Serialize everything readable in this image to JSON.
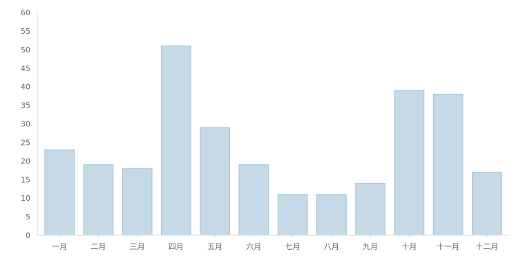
{
  "chart_data": {
    "type": "bar",
    "title": "",
    "xlabel": "",
    "ylabel": "",
    "categories": [
      "一月",
      "二月",
      "三月",
      "四月",
      "五月",
      "六月",
      "七月",
      "八月",
      "九月",
      "十月",
      "十一月",
      "十二月"
    ],
    "values": [
      23,
      19,
      18,
      51,
      29,
      19,
      11,
      11,
      14,
      39,
      38,
      17
    ],
    "ylim": [
      0,
      60
    ],
    "yticks": [
      0,
      5,
      10,
      15,
      20,
      25,
      30,
      35,
      40,
      45,
      50,
      55,
      60
    ],
    "grid": false,
    "legend": "none",
    "colors": {
      "bar_fill": "#c5d9e6",
      "bar_stroke": "#a9c3d3",
      "axis": "#d8dde2",
      "tick_label": "#666666"
    }
  }
}
